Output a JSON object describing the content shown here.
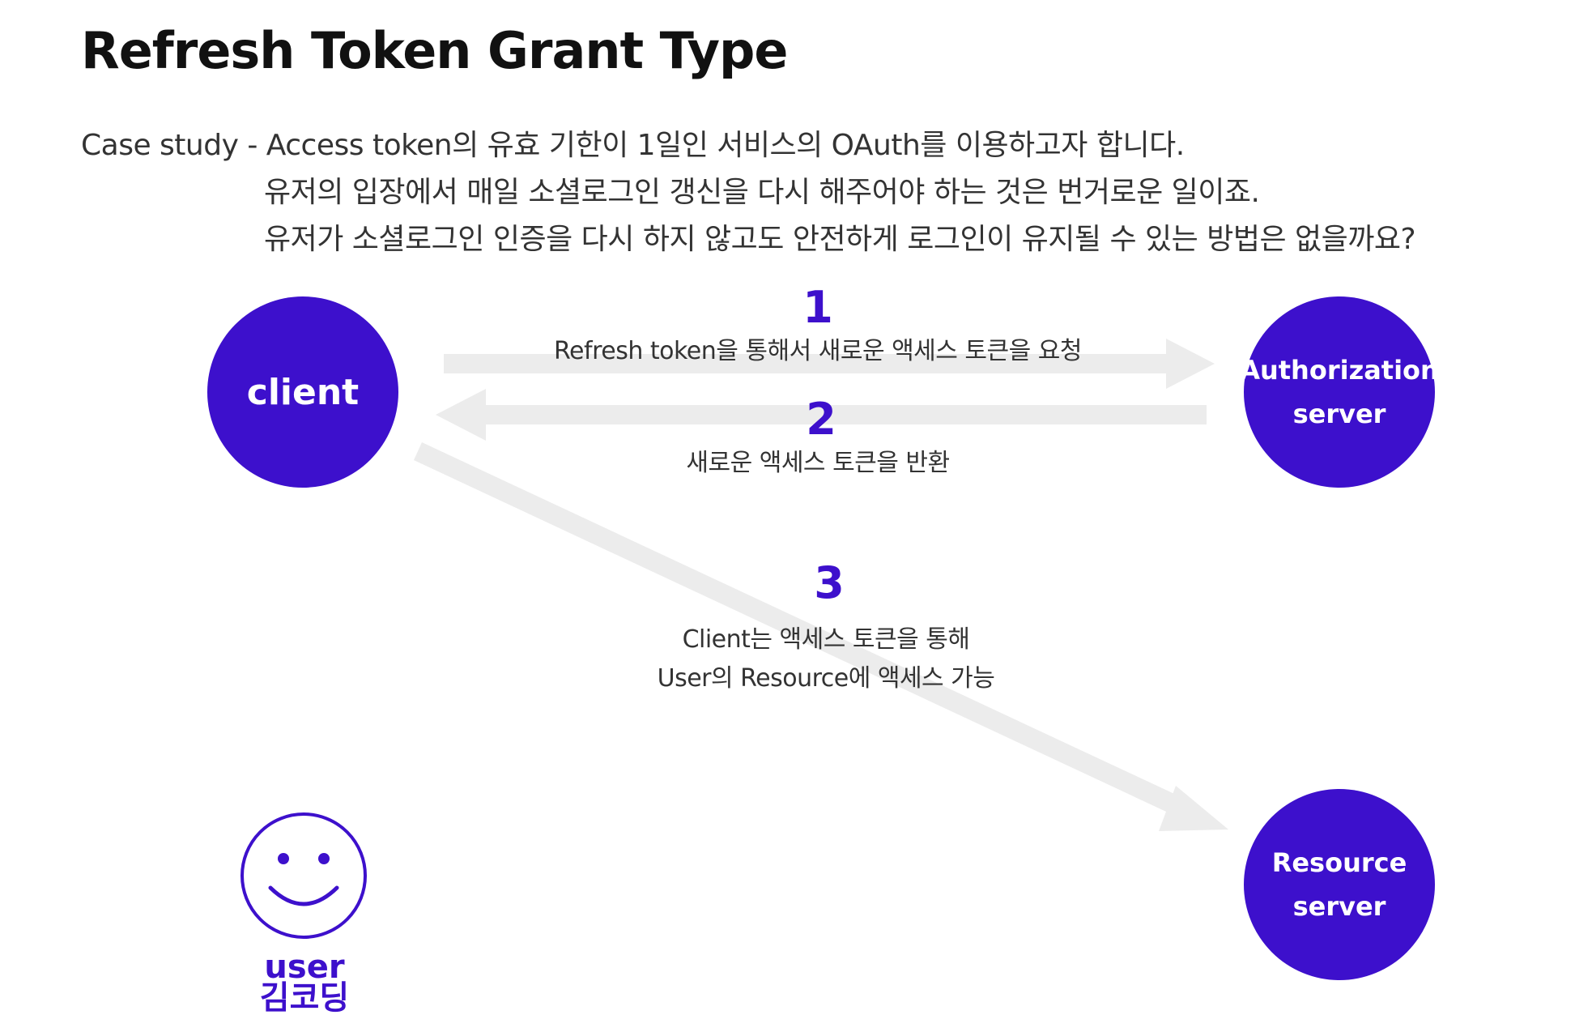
{
  "title": "Refresh Token Grant Type",
  "case_study": {
    "line1": "Case study - Access token의 유효 기한이 1일인 서비스의 OAuth를 이용하고자 합니다.",
    "line2": "유저의 입장에서 매일 소셜로그인 갱신을 다시 해주어야 하는 것은 번거로운 일이죠.",
    "line3": "유저가 소셜로그인 인증을 다시 하지 않고도 안전하게 로그인이 유지될 수 있는 방법은 없을까요?"
  },
  "nodes": {
    "client": "client",
    "auth_line1": "Authorization",
    "auth_line2": "server",
    "resource_line1": "Resource",
    "resource_line2": "server"
  },
  "steps": [
    {
      "num": "1",
      "label": "Refresh token을 통해서 새로운 액세스 토큰을 요청"
    },
    {
      "num": "2",
      "label": "새로운 액세스 토큰을 반환"
    },
    {
      "num": "3",
      "label_line1": "Client는 액세스 토큰을 통해",
      "label_line2": "User의 Resource에 액세스 가능"
    }
  ],
  "user": {
    "label_en": "user",
    "label_ko": "김코딩"
  },
  "colors": {
    "accent": "#3d10cc",
    "arrow": "#ececec",
    "text": "#333333"
  }
}
